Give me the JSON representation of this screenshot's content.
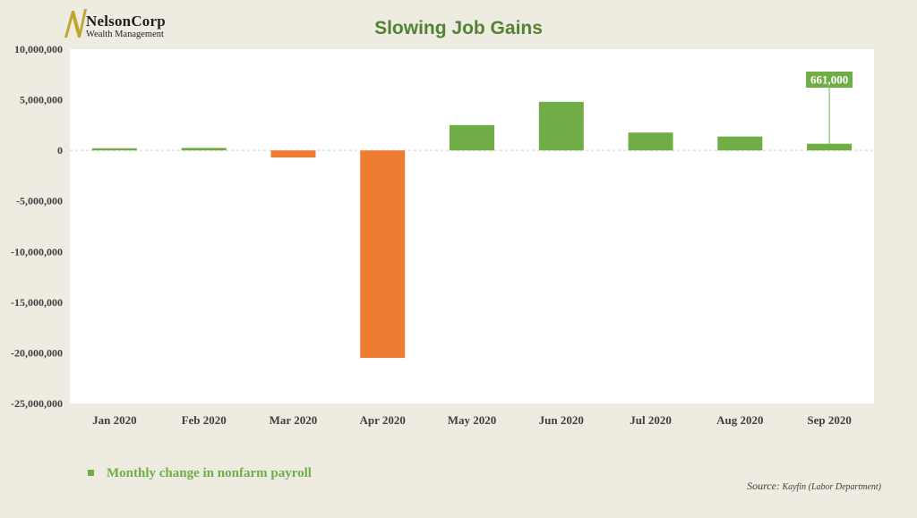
{
  "logo": {
    "name": "NelsonCorp",
    "subtitle": "Wealth Management"
  },
  "colors": {
    "positive": "#70ad47",
    "negative": "#ed7d31",
    "title": "#548235",
    "background": "#eeebe1",
    "plot": "#ffffff"
  },
  "chart_data": {
    "type": "bar",
    "title": "Slowing Job Gains",
    "xlabel": "",
    "ylabel": "",
    "categories": [
      "Jan 2020",
      "Feb 2020",
      "Mar 2020",
      "Apr 2020",
      "May 2020",
      "Jun 2020",
      "Jul 2020",
      "Aug 2020",
      "Sep 2020"
    ],
    "series": [
      {
        "name": "Monthly change in nonfarm payroll",
        "values": [
          214000,
          251000,
          -701000,
          -20500000,
          2509000,
          4800000,
          1763000,
          1371000,
          661000
        ]
      }
    ],
    "ylim": [
      -25000000,
      10000000
    ],
    "yticks": [
      10000000,
      5000000,
      0,
      -5000000,
      -10000000,
      -15000000,
      -20000000,
      -25000000
    ],
    "ytick_labels": [
      "10,000,000",
      "5,000,000",
      "0",
      "-5,000,000",
      "-10,000,000",
      "-15,000,000",
      "-20,000,000",
      "-25,000,000"
    ],
    "annotations": [
      {
        "category": "Sep 2020",
        "text": "661,000"
      }
    ],
    "legend": "bottom-left",
    "grid": false
  },
  "source": {
    "label": "Source:",
    "text": "Kayfin (Labor Department)"
  }
}
